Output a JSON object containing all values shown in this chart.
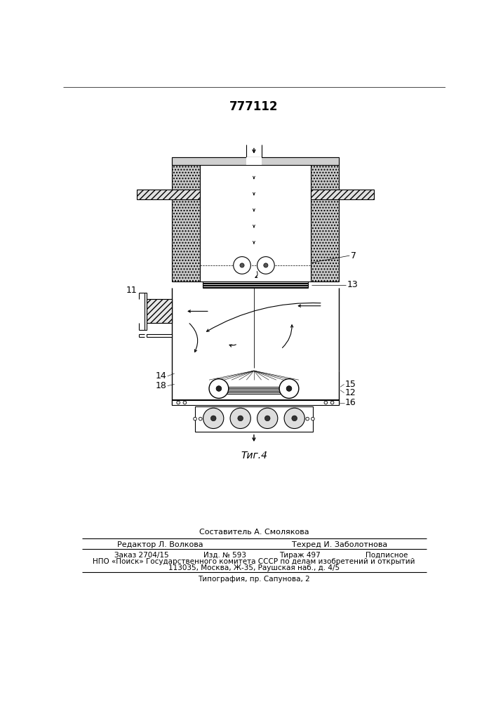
{
  "patent_number": "777112",
  "fig_label": "Τиг.4",
  "editor_line": "Редактор Л. Волкова",
  "composer_line": "Составитель А. Смолякова",
  "techred_line": "Техред И. Заболотнова",
  "order_line1": "Заказ 2704/15",
  "order_line2": "Изд. № 593",
  "order_line3": "Тираж 497",
  "order_line4": "Подписное",
  "npo_line": "НПО «Поиск» Государственного комитета СССР по делам изобретений и открытий",
  "address_line": "113035, Москва, Ж-35, Раушская наб., д. 4/5",
  "print_line": "Типография, пр. Сапунова, 2",
  "bg_color": "#ffffff",
  "line_color": "#000000"
}
